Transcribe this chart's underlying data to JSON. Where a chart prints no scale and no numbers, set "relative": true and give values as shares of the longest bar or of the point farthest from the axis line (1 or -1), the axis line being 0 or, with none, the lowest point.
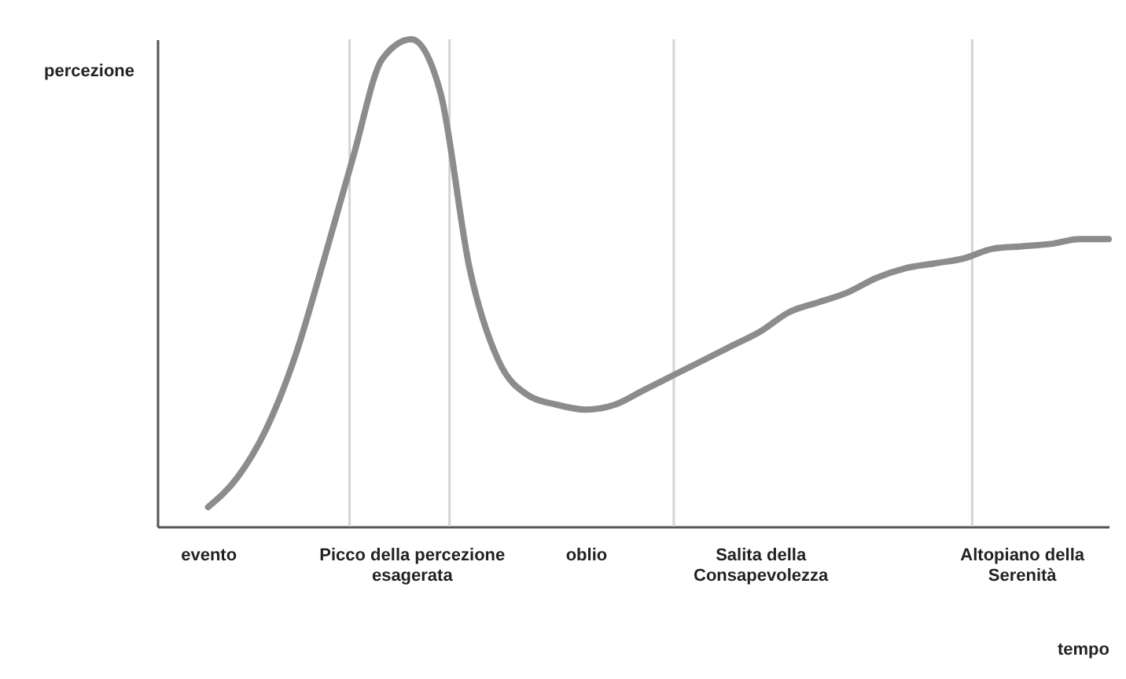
{
  "chart_data": {
    "type": "line",
    "relative": true,
    "xlabel": "tempo",
    "ylabel": "percezione",
    "categories": [
      "evento",
      null,
      null,
      null,
      null,
      null,
      null,
      "Picco della percezione\nesagerata",
      null,
      null,
      null,
      null,
      null,
      "oblio",
      null,
      null,
      null,
      null,
      null,
      "Salita della\nConsapevolezza",
      null,
      null,
      null,
      null,
      null,
      null,
      null,
      null,
      "Altopiano della\nSerenità",
      null,
      null,
      null
    ],
    "series": [
      {
        "color": "#8c8c8c",
        "values": [
          0.04,
          0.1,
          0.2,
          0.35,
          0.55,
          0.76,
          0.96,
          1,
          0.89,
          0.53,
          0.34,
          0.27,
          0.25,
          0.24,
          0.25,
          0.28,
          0.31,
          0.34,
          0.37,
          0.4,
          0.44,
          0.46,
          0.48,
          0.51,
          0.53,
          0.54,
          0.55,
          0.57,
          0.575,
          0.58,
          0.59,
          0.59
        ]
      }
    ]
  }
}
